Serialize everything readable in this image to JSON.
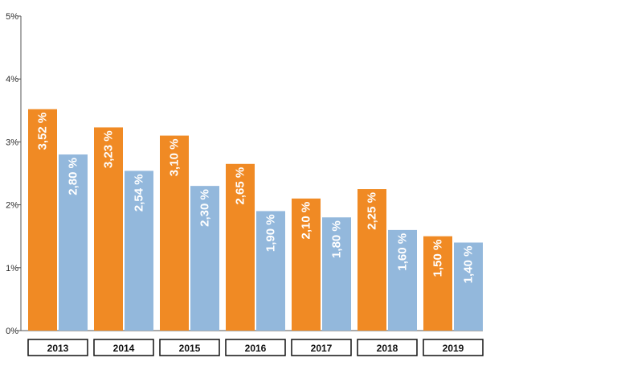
{
  "chart_data": {
    "type": "bar",
    "title": "",
    "xlabel": "",
    "ylabel": "",
    "ylim": [
      0,
      5
    ],
    "yticks": [
      "0%",
      "1%",
      "2%",
      "3%",
      "4%",
      "5%"
    ],
    "grid": false,
    "legend": "none",
    "categories": [
      "2013",
      "2014",
      "2015",
      "2016",
      "2017",
      "2018",
      "2019"
    ],
    "series": [
      {
        "color": "#f08a24",
        "values": [
          3.52,
          3.23,
          3.1,
          2.65,
          2.1,
          2.25,
          1.5
        ],
        "labels": [
          "3,52 %",
          "3,23 %",
          "3,10 %",
          "2,65 %",
          "2,10 %",
          "2,25 %",
          "1,50 %"
        ]
      },
      {
        "color": "#93b8dc",
        "values": [
          2.8,
          2.54,
          2.3,
          1.9,
          1.8,
          1.6,
          1.4
        ],
        "labels": [
          "2,80 %",
          "2,54 %",
          "2,30 %",
          "1,90 %",
          "1,80 %",
          "1,60 %",
          "1,40 %"
        ]
      }
    ]
  }
}
